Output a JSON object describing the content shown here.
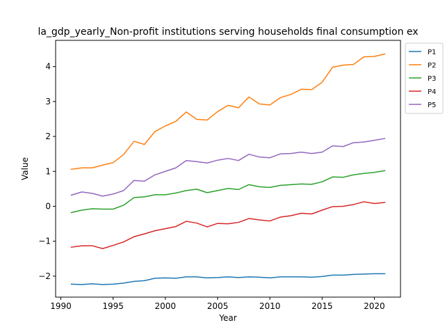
{
  "chart_data": {
    "type": "line",
    "title": "la_gdp_yearly_Non-profit institutions serving households final consumption ex",
    "xlabel": "Year",
    "ylabel": "Value",
    "xlim": [
      1989.5,
      2022.5
    ],
    "ylim": [
      -2.6,
      4.75
    ],
    "xticks": [
      1990,
      1995,
      2000,
      2005,
      2010,
      2015,
      2020
    ],
    "yticks": [
      -2,
      -1,
      0,
      1,
      2,
      3,
      4
    ],
    "grid": false,
    "legend": "outside-right",
    "x": [
      1991,
      1992,
      1993,
      1994,
      1995,
      1996,
      1997,
      1998,
      1999,
      2000,
      2001,
      2002,
      2003,
      2004,
      2005,
      2006,
      2007,
      2008,
      2009,
      2010,
      2011,
      2012,
      2013,
      2014,
      2015,
      2016,
      2017,
      2018,
      2019,
      2020,
      2021
    ],
    "series": [
      {
        "name": "P1",
        "color": "#1f77b4",
        "values": [
          -2.23,
          -2.24,
          -2.22,
          -2.24,
          -2.23,
          -2.2,
          -2.15,
          -2.13,
          -2.06,
          -2.05,
          -2.06,
          -2.02,
          -2.02,
          -2.05,
          -2.04,
          -2.02,
          -2.04,
          -2.02,
          -2.03,
          -2.05,
          -2.02,
          -2.02,
          -2.02,
          -2.03,
          -2.01,
          -1.97,
          -1.97,
          -1.95,
          -1.94,
          -1.93,
          -1.93
        ]
      },
      {
        "name": "P2",
        "color": "#ff7f0e",
        "values": [
          1.06,
          1.1,
          1.1,
          1.18,
          1.25,
          1.48,
          1.86,
          1.77,
          2.14,
          2.3,
          2.43,
          2.7,
          2.49,
          2.47,
          2.71,
          2.89,
          2.82,
          3.13,
          2.93,
          2.9,
          3.11,
          3.2,
          3.35,
          3.34,
          3.55,
          3.98,
          4.04,
          4.06,
          4.28,
          4.29,
          4.36
        ]
      },
      {
        "name": "P3",
        "color": "#2ca02c",
        "values": [
          -0.18,
          -0.11,
          -0.07,
          -0.08,
          -0.08,
          0.03,
          0.25,
          0.27,
          0.33,
          0.33,
          0.38,
          0.45,
          0.49,
          0.39,
          0.45,
          0.51,
          0.48,
          0.62,
          0.56,
          0.54,
          0.6,
          0.62,
          0.64,
          0.63,
          0.7,
          0.84,
          0.83,
          0.9,
          0.94,
          0.97,
          1.02
        ]
      },
      {
        "name": "P4",
        "color": "#d62728",
        "values": [
          -1.17,
          -1.13,
          -1.13,
          -1.21,
          -1.12,
          -1.02,
          -0.87,
          -0.79,
          -0.7,
          -0.64,
          -0.58,
          -0.43,
          -0.48,
          -0.59,
          -0.49,
          -0.5,
          -0.46,
          -0.35,
          -0.39,
          -0.42,
          -0.31,
          -0.27,
          -0.2,
          -0.22,
          -0.11,
          -0.01,
          0.0,
          0.05,
          0.13,
          0.08,
          0.11
        ]
      },
      {
        "name": "P5",
        "color": "#9467bd",
        "values": [
          0.32,
          0.41,
          0.37,
          0.29,
          0.35,
          0.45,
          0.74,
          0.72,
          0.9,
          1.0,
          1.1,
          1.31,
          1.28,
          1.24,
          1.32,
          1.37,
          1.31,
          1.49,
          1.41,
          1.39,
          1.5,
          1.51,
          1.55,
          1.51,
          1.55,
          1.73,
          1.71,
          1.82,
          1.84,
          1.89,
          1.94
        ]
      }
    ]
  }
}
